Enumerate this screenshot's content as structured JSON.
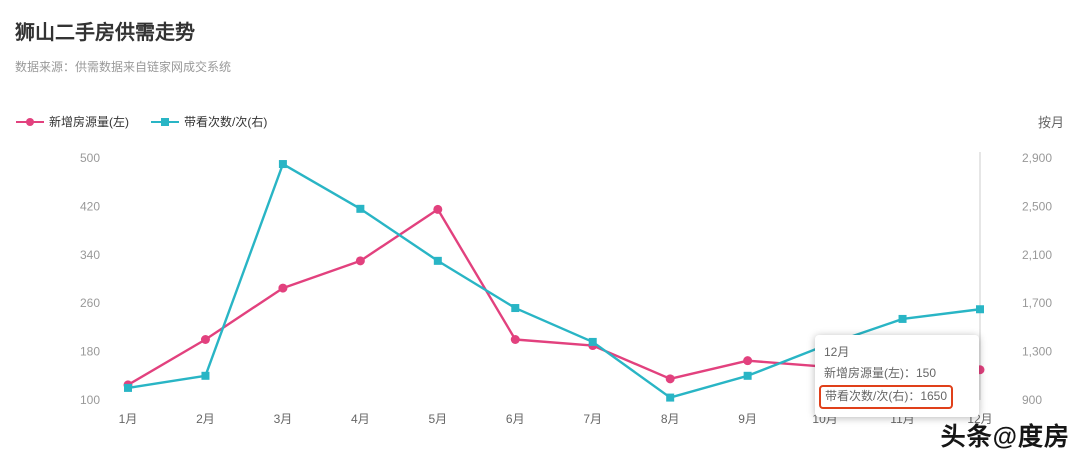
{
  "header": {
    "title": "狮山二手房供需走势",
    "subtitle": "数据来源：供需数据来自链家网成交系统",
    "period_label": "按月"
  },
  "colors": {
    "series_pink": "#e2417e",
    "series_teal": "#29b5c5",
    "highlight_border": "#e0401a",
    "axis_text": "#999999",
    "hover_line": "#cccccc"
  },
  "chart_data": {
    "type": "line",
    "title": "狮山二手房供需走势",
    "categories": [
      "1月",
      "2月",
      "3月",
      "4月",
      "5月",
      "6月",
      "7月",
      "8月",
      "9月",
      "10月",
      "11月",
      "12月"
    ],
    "series": [
      {
        "name": "新增房源量(左)",
        "axis": "left",
        "color": "#e2417e",
        "marker": "circle",
        "values": [
          125,
          200,
          285,
          330,
          415,
          200,
          190,
          135,
          165,
          155,
          130,
          150
        ]
      },
      {
        "name": "带看次数/次(右)",
        "axis": "right",
        "color": "#29b5c5",
        "marker": "square",
        "values": [
          1000,
          1100,
          2850,
          2480,
          2050,
          1660,
          1380,
          920,
          1100,
          1350,
          1570,
          1650
        ]
      }
    ],
    "left_axis": {
      "min": 100,
      "max": 500,
      "ticks": [
        100,
        180,
        260,
        340,
        420,
        500
      ]
    },
    "right_axis": {
      "min": 900,
      "max": 2900,
      "ticks": [
        900,
        1300,
        1700,
        2100,
        2500,
        2900
      ],
      "tick_labels": [
        "900",
        "1,300",
        "1,700",
        "2,100",
        "2,500",
        "2,900"
      ]
    },
    "hover_index": 11,
    "grid": false,
    "legend_position": "top-left"
  },
  "tooltip": {
    "title": "12月",
    "separator": "：",
    "rows": [
      {
        "label": "新增房源量(左)",
        "value": "150",
        "highlighted": false
      },
      {
        "label": "带看次数/次(右)",
        "value": "1650",
        "highlighted": true
      }
    ]
  },
  "watermark": "头条@度房"
}
